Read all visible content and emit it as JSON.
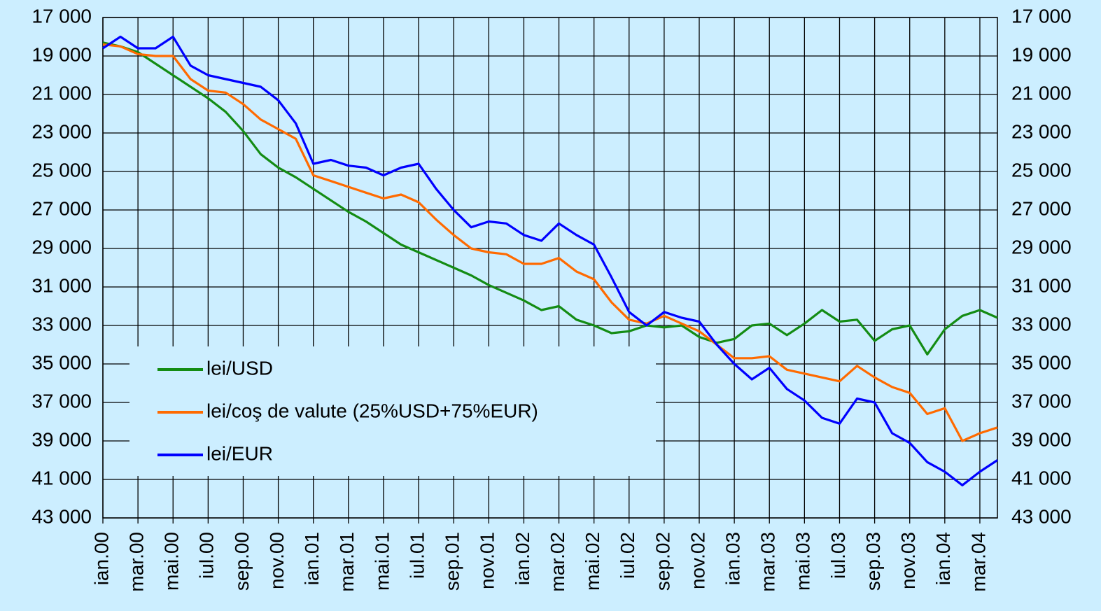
{
  "chart_data": {
    "type": "line",
    "categories": [
      "ian.00",
      null,
      "mar.00",
      null,
      "mai.00",
      null,
      "iul.00",
      null,
      "sep.00",
      null,
      "nov.00",
      null,
      "ian.01",
      null,
      "mar.01",
      null,
      "mai.01",
      null,
      "iul.01",
      null,
      "sep.01",
      null,
      "nov.01",
      null,
      "ian.02",
      null,
      "mar.02",
      null,
      "mai.02",
      null,
      "iul.02",
      null,
      "sep.02",
      null,
      "nov.02",
      null,
      "ian.03",
      null,
      "mar.03",
      null,
      "mai.03",
      null,
      "iul.03",
      null,
      "sep.03",
      null,
      "nov.03",
      null,
      "ian.04",
      null,
      "mar.04",
      null
    ],
    "series": [
      {
        "name": "lei/USD",
        "color": "#148c14",
        "values": [
          18300,
          18500,
          18800,
          19400,
          20000,
          20600,
          21200,
          21900,
          22900,
          24100,
          24800,
          25300,
          25900,
          26500,
          27100,
          27600,
          28200,
          28800,
          29200,
          29600,
          30000,
          30400,
          30900,
          31300,
          31700,
          32200,
          32000,
          32700,
          33000,
          33400,
          33300,
          33000,
          33100,
          33000,
          33600,
          33900,
          33700,
          33000,
          32900,
          33500,
          32900,
          32200,
          32800,
          32700,
          33800,
          33200,
          33000,
          34500,
          33200,
          32500,
          32200,
          32600
        ]
      },
      {
        "name": "lei/coş de valute (25%USD+75%EUR)",
        "color": "#ff6a00",
        "values": [
          18400,
          18500,
          18900,
          19000,
          19000,
          20200,
          20800,
          20900,
          21500,
          22300,
          22800,
          23300,
          25200,
          25500,
          25800,
          26100,
          26400,
          26200,
          26600,
          27500,
          28300,
          29000,
          29200,
          29300,
          29800,
          29800,
          29500,
          30200,
          30600,
          31800,
          32700,
          32900,
          32500,
          32900,
          33300,
          34000,
          34700,
          34700,
          34600,
          35300,
          35500,
          35700,
          35900,
          35100,
          35700,
          36200,
          36500,
          37600,
          37300,
          39000,
          38600,
          38300
        ]
      },
      {
        "name": "lei/EUR",
        "color": "#0000ff",
        "values": [
          18600,
          18000,
          18600,
          18600,
          18000,
          19500,
          20000,
          20200,
          20400,
          20600,
          21300,
          22500,
          24600,
          24400,
          24700,
          24800,
          25200,
          24800,
          24600,
          25900,
          27000,
          27900,
          27600,
          27700,
          28300,
          28600,
          27700,
          28300,
          28800,
          30500,
          32300,
          33000,
          32300,
          32600,
          32800,
          34000,
          35000,
          35800,
          35200,
          36300,
          36900,
          37800,
          38100,
          36800,
          37000,
          38600,
          39100,
          40100,
          40600,
          41300,
          40600,
          40000
        ]
      }
    ],
    "ylim": [
      43000,
      17000
    ],
    "yticks": [
      {
        "value": 17000,
        "label": "17 000"
      },
      {
        "value": 19000,
        "label": "19 000"
      },
      {
        "value": 21000,
        "label": "21 000"
      },
      {
        "value": 23000,
        "label": "23 000"
      },
      {
        "value": 25000,
        "label": "25 000"
      },
      {
        "value": 27000,
        "label": "27 000"
      },
      {
        "value": 29000,
        "label": "29 000"
      },
      {
        "value": 31000,
        "label": "31 000"
      },
      {
        "value": 33000,
        "label": "33 000"
      },
      {
        "value": 35000,
        "label": "35 000"
      },
      {
        "value": 37000,
        "label": "37 000"
      },
      {
        "value": 39000,
        "label": "39 000"
      },
      {
        "value": 41000,
        "label": "41 000"
      },
      {
        "value": 43000,
        "label": "43 000"
      }
    ],
    "grid": true,
    "legend": "lower-left",
    "right_axis_mirror": true
  }
}
